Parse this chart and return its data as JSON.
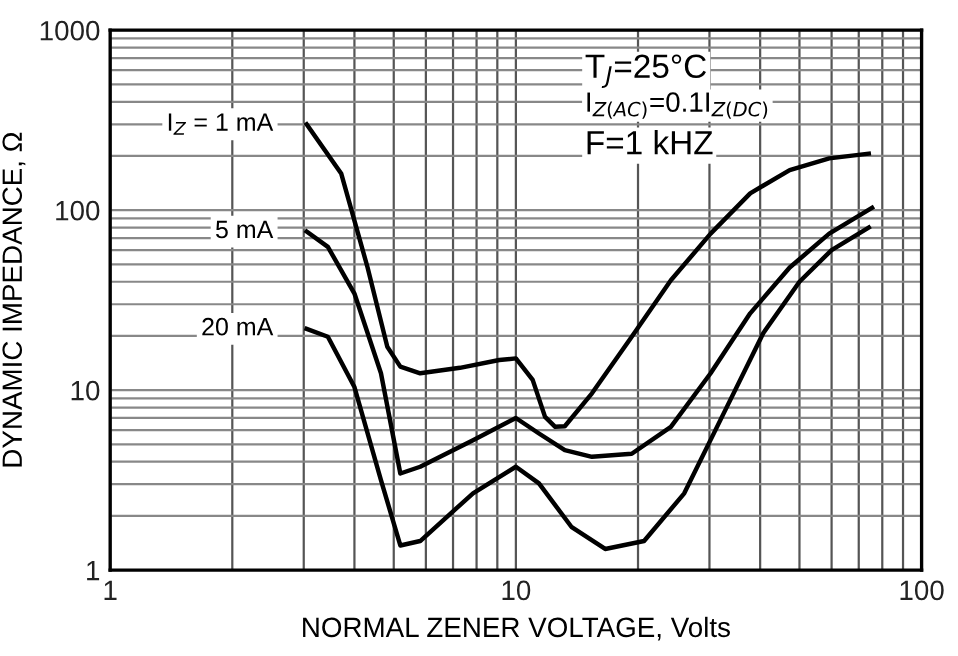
{
  "chart_data": {
    "type": "line",
    "xlabel": "NORMAL ZENER VOLTAGE, Volts",
    "ylabel": "DYNAMIC IMPEDANCE, Ω",
    "log": "xy",
    "xlim": [
      1,
      100
    ],
    "ylim": [
      1,
      1000
    ],
    "xticks": [
      1,
      10,
      100
    ],
    "yticks": [
      1,
      10,
      100,
      1000
    ],
    "grid": true,
    "legend": false,
    "marker": "none",
    "line_style": "solid",
    "annotations": [
      "T$_{J}$=25°C",
      "I$_{Z(AC)}$=0.1I$_{Z(DC)}$",
      "F=1 kHZ"
    ],
    "series": [
      {
        "name": "I$_{Z}$ = 1 mA",
        "color": "#000000",
        "x": [
          3.05,
          3.71,
          4.31,
          4.82,
          5.19,
          5.81,
          7.28,
          9.1,
          10,
          11,
          11.8,
          12.5,
          13.2,
          15.4,
          19.3,
          24.1,
          30.2,
          37.8,
          47.3,
          59.2,
          74.1
        ],
        "values": [
          300,
          160,
          48,
          17.4,
          13.5,
          12.4,
          13.3,
          14.7,
          15,
          11.4,
          7.1,
          6.25,
          6.3,
          9.6,
          19.8,
          40.8,
          74,
          124,
          167,
          194,
          206
        ]
      },
      {
        "name": "5 mA",
        "color": "#000000",
        "x": [
          3.05,
          3.44,
          4.0,
          4.65,
          5.19,
          5.81,
          7.84,
          10,
          11.4,
          13.2,
          15.4,
          19.3,
          24.1,
          30.2,
          37.8,
          47.3,
          59.2,
          75.5
        ],
        "values": [
          76,
          62.5,
          34.4,
          12.4,
          3.44,
          3.75,
          5.27,
          7.0,
          5.74,
          4.64,
          4.26,
          4.43,
          6.25,
          12.4,
          26.7,
          48,
          74,
          103
        ]
      },
      {
        "name": "20 mA",
        "color": "#000000",
        "x": [
          3.05,
          3.44,
          4.0,
          4.65,
          5.19,
          5.81,
          7.84,
          10,
          11.4,
          13.7,
          16.6,
          20.7,
          26.0,
          32.5,
          40.7,
          50,
          60,
          74.1
        ],
        "values": [
          21.9,
          19.8,
          10.4,
          3.16,
          1.37,
          1.45,
          2.67,
          3.75,
          3.03,
          1.74,
          1.31,
          1.45,
          2.67,
          7.4,
          20.7,
          40,
          60,
          80
        ]
      }
    ]
  }
}
